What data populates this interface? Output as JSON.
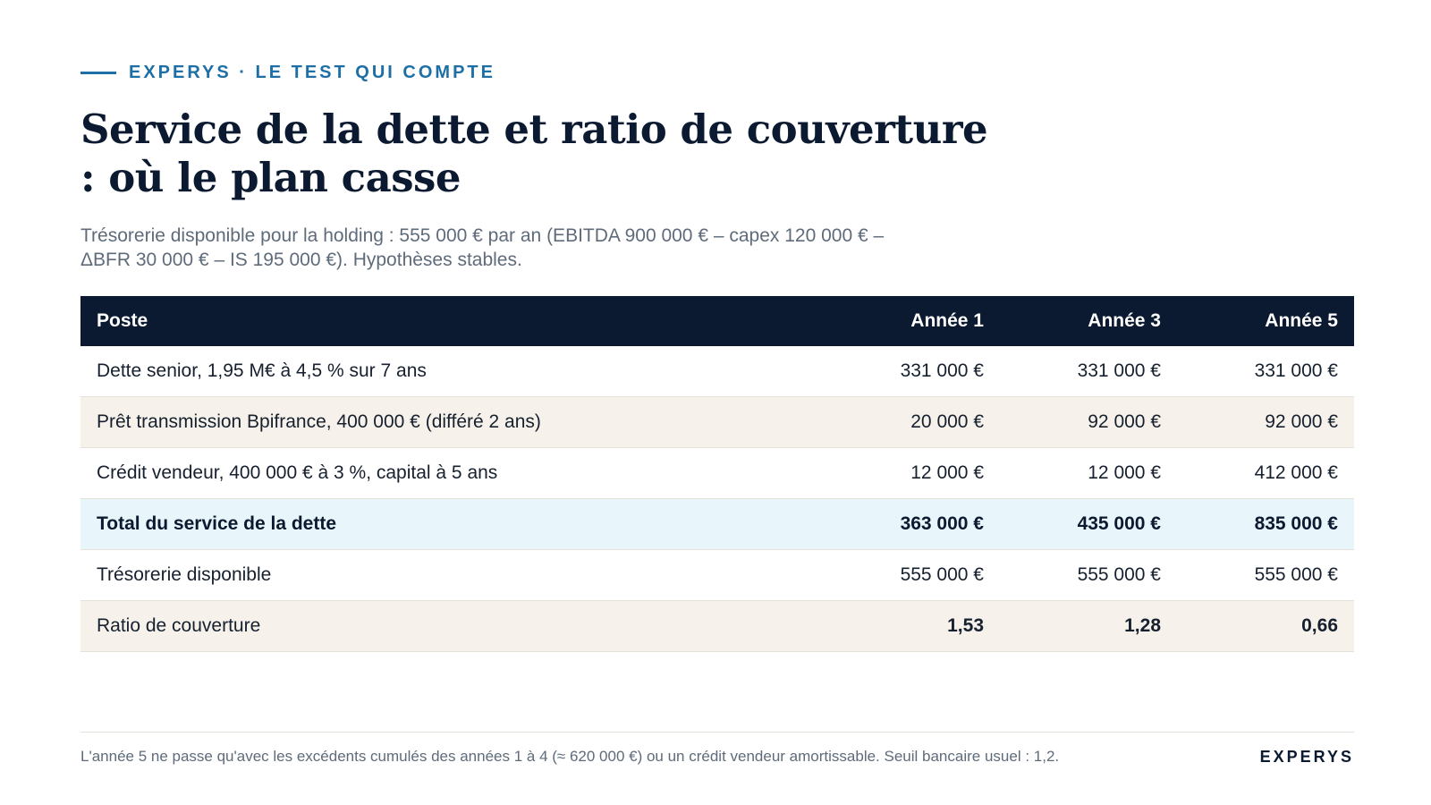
{
  "header": {
    "eyebrow": "EXPERYS · LE TEST QUI COMPTE",
    "title": "Service de la dette et ratio de couverture : où le plan casse",
    "subtitle": "Trésorerie disponible pour la holding : 555 000 € par an (EBITDA 900 000 € – capex 120 000 € – ΔBFR 30 000 € – IS 195 000 €). Hypothèses stables."
  },
  "table": {
    "columns": [
      "Poste",
      "Année 1",
      "Année 3",
      "Année 5"
    ],
    "rows": [
      {
        "label": "Dette senior, 1,95 M€ à 4,5 % sur 7 ans",
        "values": [
          "331 000 €",
          "331 000 €",
          "331 000 €"
        ]
      },
      {
        "label": "Prêt transmission Bpifrance, 400 000 € (différé 2 ans)",
        "values": [
          "20 000 €",
          "92 000 €",
          "92 000 €"
        ]
      },
      {
        "label": "Crédit vendeur, 400 000 € à 3 %, capital à 5 ans",
        "values": [
          "12 000 €",
          "12 000 €",
          "412 000 €"
        ]
      },
      {
        "label": "Total du service de la dette",
        "values": [
          "363 000 €",
          "435 000 €",
          "835 000 €"
        ]
      },
      {
        "label": "Trésorerie disponible",
        "values": [
          "555 000 €",
          "555 000 €",
          "555 000 €"
        ]
      },
      {
        "label": "Ratio de couverture",
        "values": [
          "1,53",
          "1,28",
          "0,66"
        ]
      }
    ]
  },
  "colors": {
    "navy": "#0b1a30",
    "accent_blue": "#1d6fa5",
    "alert_red": "#b5262a",
    "total_row_bg": "#e8f5fa",
    "alt_row_bg": "#f6f2eb"
  },
  "footer": {
    "note": "L'année 5 ne passe qu'avec les excédents cumulés des années 1 à 4 (≈ 620 000 €) ou un crédit vendeur amortissable. Seuil bancaire usuel : 1,2.",
    "brand": "EXPERYS"
  }
}
